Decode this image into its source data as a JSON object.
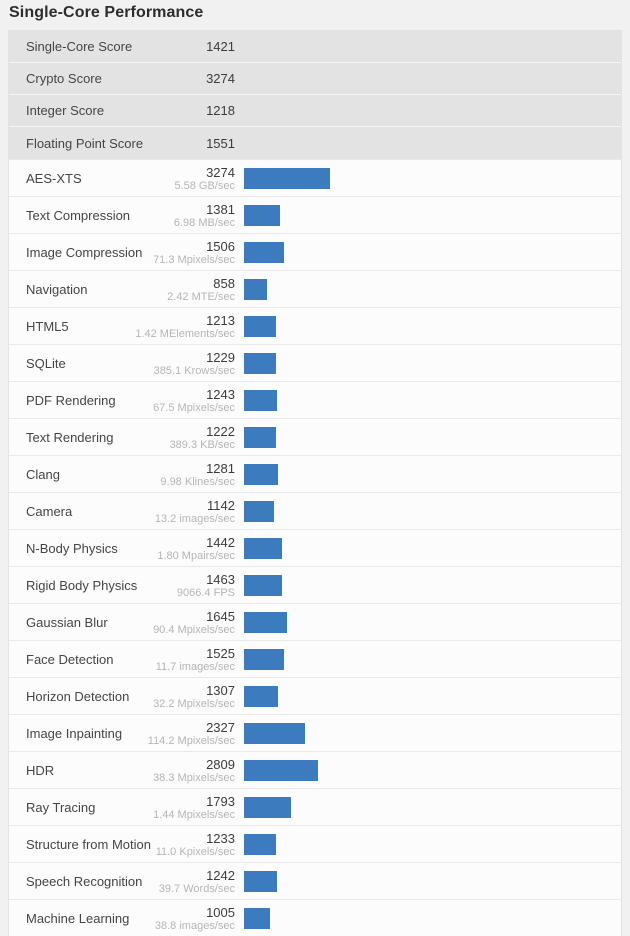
{
  "title": "Single-Core Performance",
  "colors": {
    "bar": "#3c7cbe",
    "summary_row_bg": "#e3e3e3",
    "page_bg": "#f1f1f1"
  },
  "summary": [
    {
      "label": "Single-Core Score",
      "score": "1421"
    },
    {
      "label": "Crypto Score",
      "score": "3274"
    },
    {
      "label": "Integer Score",
      "score": "1218"
    },
    {
      "label": "Floating Point Score",
      "score": "1551"
    }
  ],
  "benchmarks": [
    {
      "label": "AES-XTS",
      "score": "3274",
      "rate": "5.58 GB/sec"
    },
    {
      "label": "Text Compression",
      "score": "1381",
      "rate": "6.98 MB/sec"
    },
    {
      "label": "Image Compression",
      "score": "1506",
      "rate": "71.3 Mpixels/sec"
    },
    {
      "label": "Navigation",
      "score": "858",
      "rate": "2.42 MTE/sec"
    },
    {
      "label": "HTML5",
      "score": "1213",
      "rate": "1.42 MElements/sec"
    },
    {
      "label": "SQLite",
      "score": "1229",
      "rate": "385.1 Krows/sec"
    },
    {
      "label": "PDF Rendering",
      "score": "1243",
      "rate": "67.5 Mpixels/sec"
    },
    {
      "label": "Text Rendering",
      "score": "1222",
      "rate": "389.3 KB/sec"
    },
    {
      "label": "Clang",
      "score": "1281",
      "rate": "9.98 Klines/sec"
    },
    {
      "label": "Camera",
      "score": "1142",
      "rate": "13.2 images/sec"
    },
    {
      "label": "N-Body Physics",
      "score": "1442",
      "rate": "1.80 Mpairs/sec"
    },
    {
      "label": "Rigid Body Physics",
      "score": "1463",
      "rate": "9066.4 FPS"
    },
    {
      "label": "Gaussian Blur",
      "score": "1645",
      "rate": "90.4 Mpixels/sec"
    },
    {
      "label": "Face Detection",
      "score": "1525",
      "rate": "11.7 images/sec"
    },
    {
      "label": "Horizon Detection",
      "score": "1307",
      "rate": "32.2 Mpixels/sec"
    },
    {
      "label": "Image Inpainting",
      "score": "2327",
      "rate": "114.2 Mpixels/sec"
    },
    {
      "label": "HDR",
      "score": "2809",
      "rate": "38.3 Mpixels/sec"
    },
    {
      "label": "Ray Tracing",
      "score": "1793",
      "rate": "1.44 Mpixels/sec"
    },
    {
      "label": "Structure from Motion",
      "score": "1233",
      "rate": "11.0 Kpixels/sec"
    },
    {
      "label": "Speech Recognition",
      "score": "1242",
      "rate": "39.7 Words/sec"
    },
    {
      "label": "Machine Learning",
      "score": "1005",
      "rate": "38.8 images/sec"
    }
  ],
  "chart_data": {
    "type": "bar",
    "orientation": "horizontal",
    "title": "Single-Core Performance",
    "categories": [
      "AES-XTS",
      "Text Compression",
      "Image Compression",
      "Navigation",
      "HTML5",
      "SQLite",
      "PDF Rendering",
      "Text Rendering",
      "Clang",
      "Camera",
      "N-Body Physics",
      "Rigid Body Physics",
      "Gaussian Blur",
      "Face Detection",
      "Horizon Detection",
      "Image Inpainting",
      "HDR",
      "Ray Tracing",
      "Structure from Motion",
      "Speech Recognition",
      "Machine Learning"
    ],
    "values": [
      3274,
      1381,
      1506,
      858,
      1213,
      1229,
      1243,
      1222,
      1281,
      1142,
      1442,
      1463,
      1645,
      1525,
      1307,
      2327,
      2809,
      1793,
      1233,
      1242,
      1005
    ],
    "rate_labels": [
      "5.58 GB/sec",
      "6.98 MB/sec",
      "71.3 Mpixels/sec",
      "2.42 MTE/sec",
      "1.42 MElements/sec",
      "385.1 Krows/sec",
      "67.5 Mpixels/sec",
      "389.3 KB/sec",
      "9.98 Klines/sec",
      "13.2 images/sec",
      "1.80 Mpairs/sec",
      "9066.4 FPS",
      "90.4 Mpixels/sec",
      "11.7 images/sec",
      "32.2 Mpixels/sec",
      "114.2 Mpixels/sec",
      "38.3 Mpixels/sec",
      "1.44 Mpixels/sec",
      "11.0 Kpixels/sec",
      "39.7 Words/sec",
      "38.8 images/sec"
    ],
    "summary": {
      "single_core_score": 1421,
      "crypto_score": 3274,
      "integer_score": 1218,
      "floating_point_score": 1551
    },
    "xlim": [
      0,
      3274
    ],
    "grid": false,
    "legend": false,
    "bar_color": "#3c7cbe"
  }
}
